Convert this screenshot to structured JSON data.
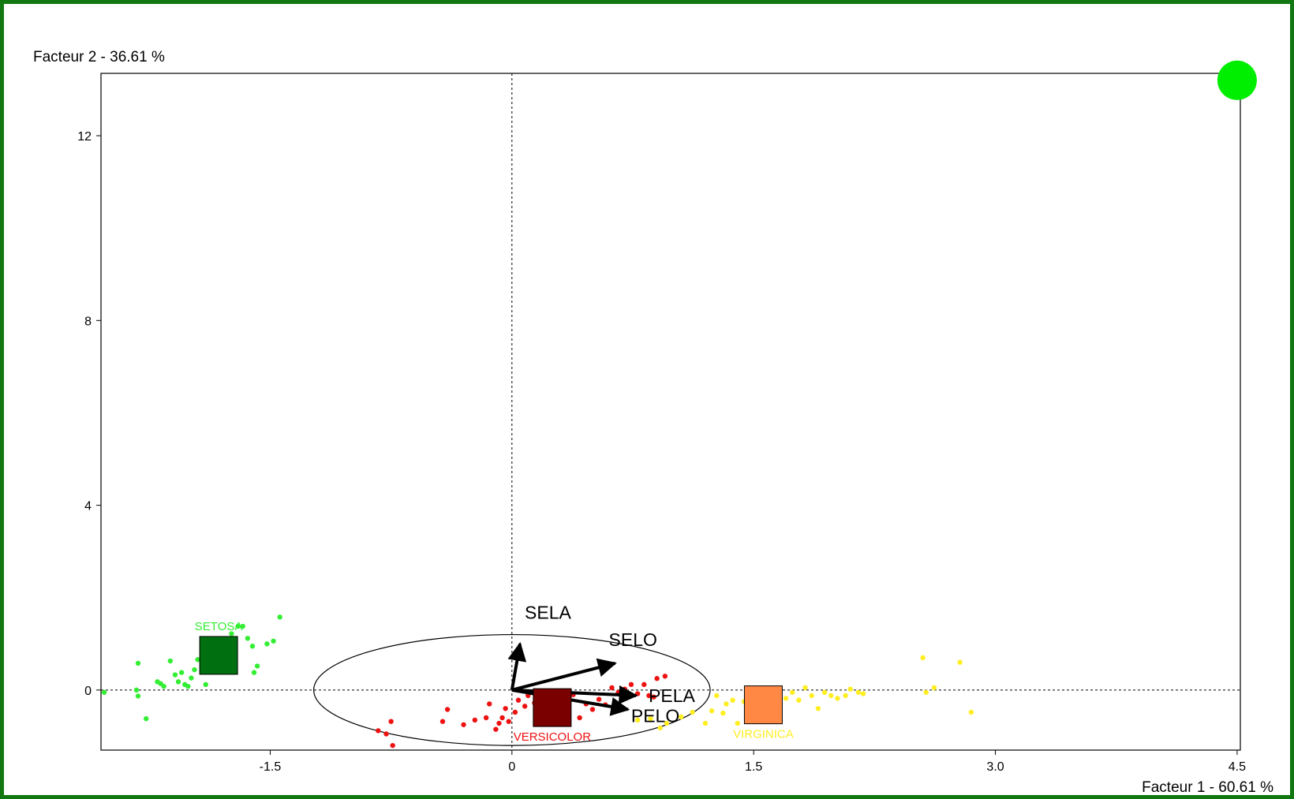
{
  "chart_data": {
    "type": "scatter",
    "title": "",
    "xlabel": "Facteur 1  -  60.61 %",
    "ylabel": "Facteur 2  -  36.61 %",
    "xlim": [
      -2.55,
      4.52
    ],
    "ylim": [
      -1.3,
      13.35
    ],
    "x_ticks": [
      -1.5,
      0,
      1.5,
      3.0,
      4.5
    ],
    "x_tick_labels": [
      "-1.5",
      "0",
      "1.5",
      "3.0",
      "4.5"
    ],
    "y_ticks": [
      0,
      4,
      8,
      12
    ],
    "y_tick_labels": [
      "0",
      "4",
      "8",
      "12"
    ],
    "reference_lines": {
      "x": 0,
      "y": 0,
      "style": "dashed"
    },
    "groups": [
      {
        "name": "SETOSA",
        "color": "#33ee33",
        "centroid": {
          "x": -1.82,
          "y": 0.75
        },
        "centroid_color": "#006f10",
        "points": [
          [
            -2.53,
            -0.05
          ],
          [
            -2.33,
            0.0
          ],
          [
            -2.32,
            -0.13
          ],
          [
            -2.32,
            0.58
          ],
          [
            -2.27,
            -0.62
          ],
          [
            -2.2,
            0.18
          ],
          [
            -2.18,
            0.14
          ],
          [
            -2.16,
            0.08
          ],
          [
            -2.12,
            0.63
          ],
          [
            -2.09,
            0.33
          ],
          [
            -2.07,
            0.18
          ],
          [
            -2.05,
            0.38
          ],
          [
            -2.03,
            0.12
          ],
          [
            -2.01,
            0.08
          ],
          [
            -1.99,
            0.26
          ],
          [
            -1.97,
            0.44
          ],
          [
            -1.95,
            0.66
          ],
          [
            -1.92,
            0.58
          ],
          [
            -1.9,
            0.12
          ],
          [
            -1.87,
            0.75
          ],
          [
            -1.85,
            0.95
          ],
          [
            -1.82,
            1.08
          ],
          [
            -1.78,
            0.98
          ],
          [
            -1.74,
            1.22
          ],
          [
            -1.7,
            1.38
          ],
          [
            -1.67,
            1.38
          ],
          [
            -1.64,
            1.12
          ],
          [
            -1.61,
            0.95
          ],
          [
            -1.6,
            0.38
          ],
          [
            -1.58,
            0.52
          ],
          [
            -1.52,
            1.0
          ],
          [
            -1.48,
            1.06
          ],
          [
            -1.44,
            1.58
          ]
        ]
      },
      {
        "name": "VERSICOLOR",
        "color": "#ee1111",
        "centroid": {
          "x": 0.25,
          "y": -0.38
        },
        "centroid_color": "#7a0000",
        "points": [
          [
            -0.83,
            -0.88
          ],
          [
            -0.78,
            -0.95
          ],
          [
            -0.75,
            -0.68
          ],
          [
            -0.74,
            -1.2
          ],
          [
            -0.43,
            -0.68
          ],
          [
            -0.4,
            -0.42
          ],
          [
            -0.3,
            -0.75
          ],
          [
            -0.23,
            -0.65
          ],
          [
            -0.16,
            -0.6
          ],
          [
            -0.14,
            -0.3
          ],
          [
            -0.1,
            -0.85
          ],
          [
            -0.08,
            -0.72
          ],
          [
            -0.06,
            -0.6
          ],
          [
            -0.04,
            -0.4
          ],
          [
            -0.02,
            -0.68
          ],
          [
            0.02,
            -0.48
          ],
          [
            0.04,
            -0.22
          ],
          [
            0.08,
            -0.35
          ],
          [
            0.1,
            -0.12
          ],
          [
            0.14,
            -0.28
          ],
          [
            0.18,
            -0.18
          ],
          [
            0.24,
            -0.5
          ],
          [
            0.28,
            -0.58
          ],
          [
            0.33,
            -0.22
          ],
          [
            0.38,
            -0.1
          ],
          [
            0.42,
            -0.6
          ],
          [
            0.46,
            -0.3
          ],
          [
            0.5,
            -0.42
          ],
          [
            0.54,
            -0.2
          ],
          [
            0.58,
            -0.32
          ],
          [
            0.62,
            0.05
          ],
          [
            0.66,
            -0.05
          ],
          [
            0.7,
            0.02
          ],
          [
            0.74,
            0.12
          ],
          [
            0.78,
            -0.08
          ],
          [
            0.82,
            0.12
          ],
          [
            0.85,
            -0.12
          ],
          [
            0.88,
            -0.15
          ],
          [
            0.9,
            0.25
          ],
          [
            0.95,
            0.3
          ]
        ]
      },
      {
        "name": "VIRGINICA",
        "color": "#ffee22",
        "centroid": {
          "x": 1.56,
          "y": -0.32
        },
        "centroid_color": "#ff8844",
        "points": [
          [
            0.78,
            -0.65
          ],
          [
            0.86,
            -0.62
          ],
          [
            0.92,
            -0.82
          ],
          [
            0.96,
            -0.72
          ],
          [
            1.05,
            -0.58
          ],
          [
            1.12,
            -0.48
          ],
          [
            1.2,
            -0.72
          ],
          [
            1.24,
            -0.45
          ],
          [
            1.27,
            -0.12
          ],
          [
            1.31,
            -0.5
          ],
          [
            1.33,
            -0.3
          ],
          [
            1.37,
            -0.22
          ],
          [
            1.4,
            -0.72
          ],
          [
            1.44,
            -0.25
          ],
          [
            1.48,
            -0.05
          ],
          [
            1.52,
            -0.1
          ],
          [
            1.58,
            -0.18
          ],
          [
            1.64,
            0.0
          ],
          [
            1.7,
            -0.18
          ],
          [
            1.74,
            -0.05
          ],
          [
            1.78,
            -0.22
          ],
          [
            1.82,
            0.05
          ],
          [
            1.86,
            -0.12
          ],
          [
            1.9,
            -0.4
          ],
          [
            1.94,
            -0.05
          ],
          [
            1.98,
            -0.12
          ],
          [
            2.02,
            -0.18
          ],
          [
            2.07,
            -0.12
          ],
          [
            2.1,
            0.02
          ],
          [
            2.15,
            -0.05
          ],
          [
            2.18,
            -0.08
          ],
          [
            2.55,
            0.7
          ],
          [
            2.57,
            -0.05
          ],
          [
            2.62,
            0.05
          ],
          [
            2.78,
            0.6
          ],
          [
            2.85,
            -0.48
          ]
        ]
      }
    ],
    "variables": [
      {
        "name": "SELA",
        "x": 0.05,
        "y": 1.0
      },
      {
        "name": "SELO",
        "x": 0.64,
        "y": 0.58
      },
      {
        "name": "PELA",
        "x": 0.77,
        "y": -0.12
      },
      {
        "name": "PELO",
        "x": 0.72,
        "y": -0.42
      }
    ],
    "ellipse": {
      "cx": 0.0,
      "cy": 0.0,
      "rx": 1.23,
      "ry": 1.2
    },
    "extra_point": {
      "x": 4.5,
      "y": 13.2,
      "color": "#00ee00"
    },
    "background_color": "#ffffff",
    "frame_color": "#117711"
  }
}
